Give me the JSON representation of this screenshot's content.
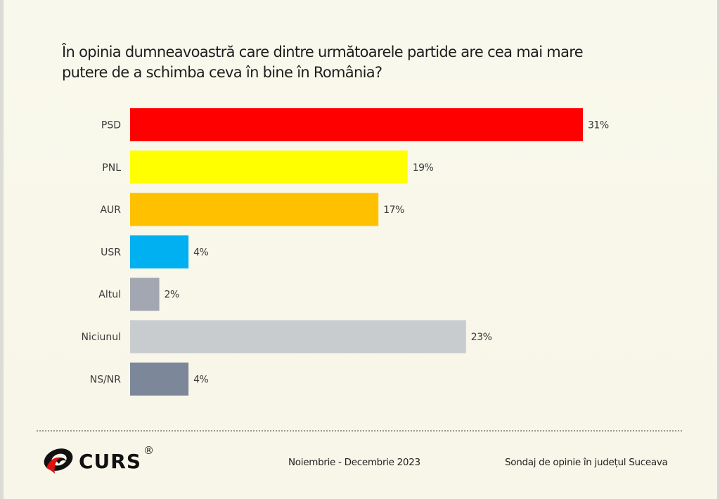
{
  "chart_data": {
    "type": "bar",
    "orientation": "horizontal",
    "title": "În opinia dumneavoastră care dintre următoarele partide are cea mai mare putere de a schimba ceva în bine în România?",
    "title_lines": [
      "În opinia dumneavoastră care dintre următoarele partide are cea mai mare",
      "putere de a schimba ceva în bine în România?"
    ],
    "xlabel": "",
    "ylabel": "",
    "unit": "%",
    "xlim": [
      0,
      31
    ],
    "grid": false,
    "legend": "none",
    "categories": [
      "PSD",
      "PNL",
      "AUR",
      "USR",
      "Altul",
      "Niciunul",
      "NS/NR"
    ],
    "values": [
      31,
      19,
      17,
      4,
      2,
      23,
      4
    ],
    "data_labels": [
      "31%",
      "19%",
      "17%",
      "4%",
      "2%",
      "23%",
      "4%"
    ],
    "colors": [
      "#ff0000",
      "#ffff00",
      "#ffc000",
      "#00b0f0",
      "#a2a7b1",
      "#c9cccf",
      "#7c8799"
    ]
  },
  "footer": {
    "logo_text": "CURS",
    "logo_mark": "®",
    "period": "Noiembrie - Decembrie 2023",
    "survey": "Sondaj de opinie în județul Suceava"
  }
}
